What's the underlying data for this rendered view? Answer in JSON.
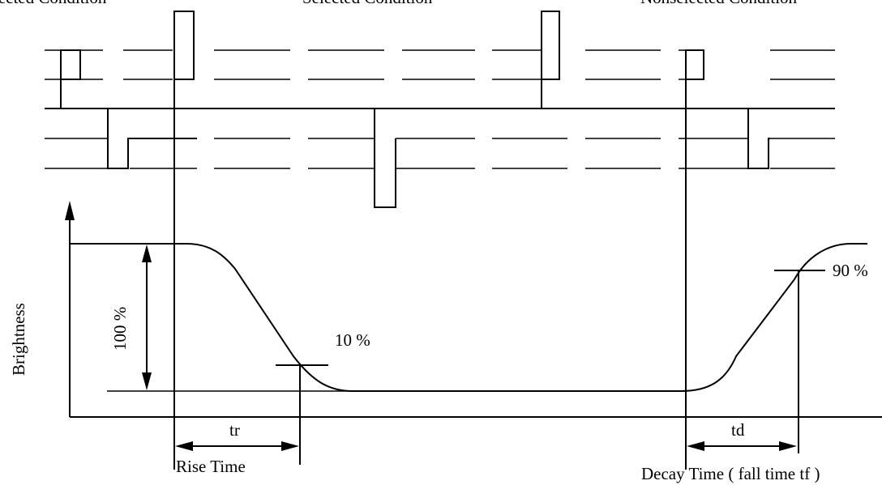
{
  "labels": {
    "top_left": "lected Condition",
    "top_middle": "Selected Condition",
    "top_right": "Nonselected Condition",
    "y_axis": "Brightness",
    "percent_100": "100 %",
    "percent_10": "10 %",
    "percent_90": "90 %",
    "tr": "tr",
    "td": "td",
    "rise_time": "Rise Time",
    "decay_time": "Decay Time ( fall time tf )"
  },
  "colors": {
    "line": "#000000",
    "background": "#ffffff"
  }
}
